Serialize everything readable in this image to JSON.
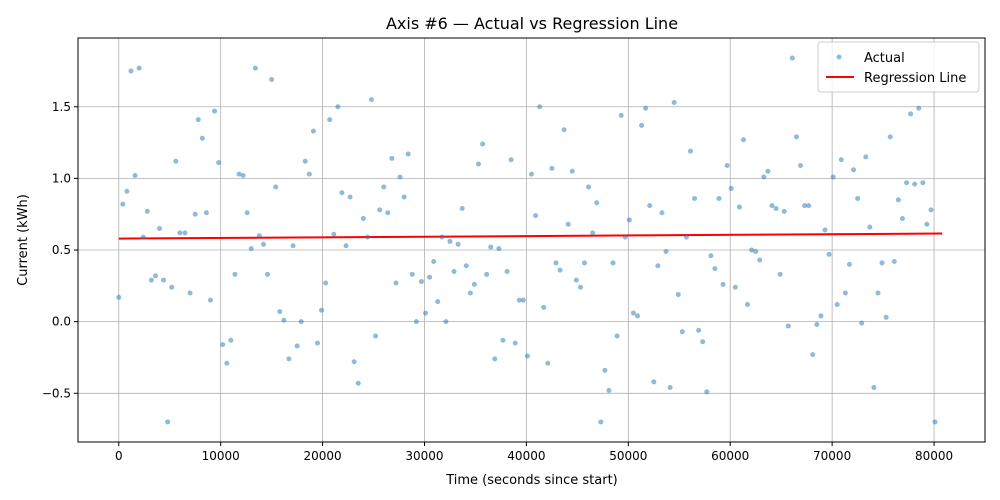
{
  "chart_data": {
    "type": "scatter",
    "title": "Axis #6 — Actual vs Regression Line",
    "xlabel": "Time (seconds since start)",
    "ylabel": "Current (kWh)",
    "xlim": [
      -4000,
      85000
    ],
    "ylim": [
      -0.84,
      1.98
    ],
    "x_ticks": [
      0,
      10000,
      20000,
      30000,
      40000,
      50000,
      60000,
      70000,
      80000
    ],
    "x_tick_labels": [
      "0",
      "10000",
      "20000",
      "30000",
      "40000",
      "50000",
      "60000",
      "70000",
      "80000"
    ],
    "y_ticks": [
      -0.5,
      0.0,
      0.5,
      1.0,
      1.5
    ],
    "y_tick_labels": [
      "−0.5",
      "0.0",
      "0.5",
      "1.0",
      "1.5"
    ],
    "grid": true,
    "legend_position": "top-right",
    "series": [
      {
        "name": "Actual",
        "kind": "scatter",
        "color": "#1f77b4",
        "alpha": 0.5,
        "points": [
          [
            0,
            0.17
          ],
          [
            400,
            0.82
          ],
          [
            800,
            0.91
          ],
          [
            1200,
            1.75
          ],
          [
            1600,
            1.02
          ],
          [
            2000,
            1.77
          ],
          [
            2400,
            0.59
          ],
          [
            2800,
            0.77
          ],
          [
            3200,
            0.29
          ],
          [
            3600,
            0.32
          ],
          [
            4000,
            0.65
          ],
          [
            4400,
            0.29
          ],
          [
            4800,
            -0.7
          ],
          [
            5200,
            0.24
          ],
          [
            5600,
            1.12
          ],
          [
            6000,
            0.62
          ],
          [
            6500,
            0.62
          ],
          [
            7000,
            0.2
          ],
          [
            7500,
            0.75
          ],
          [
            7800,
            1.41
          ],
          [
            8200,
            1.28
          ],
          [
            8600,
            0.76
          ],
          [
            9000,
            0.15
          ],
          [
            9400,
            1.47
          ],
          [
            9800,
            1.11
          ],
          [
            10200,
            -0.16
          ],
          [
            10600,
            -0.29
          ],
          [
            11000,
            -0.13
          ],
          [
            11400,
            0.33
          ],
          [
            11800,
            1.03
          ],
          [
            12200,
            1.02
          ],
          [
            12600,
            0.76
          ],
          [
            13000,
            0.51
          ],
          [
            13400,
            1.77
          ],
          [
            13800,
            0.6
          ],
          [
            14200,
            0.54
          ],
          [
            14600,
            0.33
          ],
          [
            15000,
            1.69
          ],
          [
            15400,
            0.94
          ],
          [
            15800,
            0.07
          ],
          [
            16200,
            0.01
          ],
          [
            16700,
            -0.26
          ],
          [
            17100,
            0.53
          ],
          [
            17500,
            -0.17
          ],
          [
            17900,
            0.0
          ],
          [
            18300,
            1.12
          ],
          [
            18700,
            1.03
          ],
          [
            19100,
            1.33
          ],
          [
            19500,
            -0.15
          ],
          [
            19900,
            0.08
          ],
          [
            20300,
            0.27
          ],
          [
            20700,
            1.41
          ],
          [
            21100,
            0.61
          ],
          [
            21500,
            1.5
          ],
          [
            21900,
            0.9
          ],
          [
            22300,
            0.53
          ],
          [
            22700,
            0.87
          ],
          [
            23100,
            -0.28
          ],
          [
            23500,
            -0.43
          ],
          [
            24000,
            0.72
          ],
          [
            24400,
            0.59
          ],
          [
            24800,
            1.55
          ],
          [
            25200,
            -0.1
          ],
          [
            25600,
            0.78
          ],
          [
            26000,
            0.94
          ],
          [
            26400,
            0.76
          ],
          [
            26800,
            1.14
          ],
          [
            27200,
            0.27
          ],
          [
            27600,
            1.01
          ],
          [
            28000,
            0.87
          ],
          [
            28400,
            1.17
          ],
          [
            28800,
            0.33
          ],
          [
            29200,
            0.0
          ],
          [
            29700,
            0.28
          ],
          [
            30100,
            0.06
          ],
          [
            30500,
            0.31
          ],
          [
            30900,
            0.42
          ],
          [
            31300,
            0.14
          ],
          [
            31700,
            0.59
          ],
          [
            32100,
            0.0
          ],
          [
            32500,
            0.56
          ],
          [
            32900,
            0.35
          ],
          [
            33300,
            0.54
          ],
          [
            33700,
            0.79
          ],
          [
            34100,
            0.39
          ],
          [
            34500,
            0.2
          ],
          [
            34900,
            0.26
          ],
          [
            35300,
            1.1
          ],
          [
            35700,
            1.24
          ],
          [
            36100,
            0.33
          ],
          [
            36500,
            0.52
          ],
          [
            36900,
            -0.26
          ],
          [
            37300,
            0.51
          ],
          [
            37700,
            -0.13
          ],
          [
            38100,
            0.35
          ],
          [
            38500,
            1.13
          ],
          [
            38900,
            -0.15
          ],
          [
            39300,
            0.15
          ],
          [
            39700,
            0.15
          ],
          [
            40100,
            -0.24
          ],
          [
            40500,
            1.03
          ],
          [
            40900,
            0.74
          ],
          [
            41300,
            1.5
          ],
          [
            41700,
            0.1
          ],
          [
            42100,
            -0.29
          ],
          [
            42500,
            1.07
          ],
          [
            42900,
            0.41
          ],
          [
            43300,
            0.36
          ],
          [
            43700,
            1.34
          ],
          [
            44100,
            0.68
          ],
          [
            44500,
            1.05
          ],
          [
            44900,
            0.29
          ],
          [
            45300,
            0.24
          ],
          [
            45700,
            0.41
          ],
          [
            46100,
            0.94
          ],
          [
            46500,
            0.62
          ],
          [
            46900,
            0.83
          ],
          [
            47300,
            -0.7
          ],
          [
            47700,
            -0.34
          ],
          [
            48100,
            -0.48
          ],
          [
            48500,
            0.41
          ],
          [
            48900,
            -0.1
          ],
          [
            49300,
            1.44
          ],
          [
            49700,
            0.59
          ],
          [
            50100,
            0.71
          ],
          [
            50500,
            0.06
          ],
          [
            50900,
            0.04
          ],
          [
            51300,
            1.37
          ],
          [
            51700,
            1.49
          ],
          [
            52100,
            0.81
          ],
          [
            52500,
            -0.42
          ],
          [
            52900,
            0.39
          ],
          [
            53300,
            0.76
          ],
          [
            53700,
            0.49
          ],
          [
            54100,
            -0.46
          ],
          [
            54500,
            1.53
          ],
          [
            54900,
            0.19
          ],
          [
            55300,
            -0.07
          ],
          [
            55700,
            0.59
          ],
          [
            56100,
            1.19
          ],
          [
            56500,
            0.86
          ],
          [
            56900,
            -0.06
          ],
          [
            57300,
            -0.14
          ],
          [
            57700,
            -0.49
          ],
          [
            58100,
            0.46
          ],
          [
            58500,
            0.37
          ],
          [
            58900,
            0.86
          ],
          [
            59300,
            0.26
          ],
          [
            59700,
            1.09
          ],
          [
            60100,
            0.93
          ],
          [
            60500,
            0.24
          ],
          [
            60900,
            0.8
          ],
          [
            61300,
            1.27
          ],
          [
            61700,
            0.12
          ],
          [
            62100,
            0.5
          ],
          [
            62500,
            0.49
          ],
          [
            62900,
            0.43
          ],
          [
            63300,
            1.01
          ],
          [
            63700,
            1.05
          ],
          [
            64100,
            0.81
          ],
          [
            64500,
            0.79
          ],
          [
            64900,
            0.33
          ],
          [
            65300,
            0.77
          ],
          [
            65700,
            -0.03
          ],
          [
            66100,
            1.84
          ],
          [
            66500,
            1.29
          ],
          [
            66900,
            1.09
          ],
          [
            67300,
            0.81
          ],
          [
            67700,
            0.81
          ],
          [
            68100,
            -0.23
          ],
          [
            68500,
            -0.02
          ],
          [
            68900,
            0.04
          ],
          [
            69300,
            0.64
          ],
          [
            69700,
            0.47
          ],
          [
            70100,
            1.01
          ],
          [
            70500,
            0.12
          ],
          [
            70900,
            1.13
          ],
          [
            71300,
            0.2
          ],
          [
            71700,
            0.4
          ],
          [
            72100,
            1.06
          ],
          [
            72500,
            0.86
          ],
          [
            72900,
            -0.01
          ],
          [
            73300,
            1.15
          ],
          [
            73700,
            0.66
          ],
          [
            74100,
            -0.46
          ],
          [
            74500,
            0.2
          ],
          [
            74900,
            0.41
          ],
          [
            75300,
            0.03
          ],
          [
            75700,
            1.29
          ],
          [
            76100,
            0.42
          ],
          [
            76500,
            0.85
          ],
          [
            76900,
            0.72
          ],
          [
            77300,
            0.97
          ],
          [
            77700,
            1.45
          ],
          [
            78100,
            0.96
          ],
          [
            78500,
            1.49
          ],
          [
            78900,
            0.97
          ],
          [
            79300,
            0.68
          ],
          [
            79700,
            0.78
          ],
          [
            80100,
            -0.7
          ]
        ]
      },
      {
        "name": "Regression Line",
        "kind": "line",
        "color": "#ff0000",
        "x": [
          0,
          80800
        ],
        "y": [
          0.58,
          0.615
        ]
      }
    ]
  }
}
